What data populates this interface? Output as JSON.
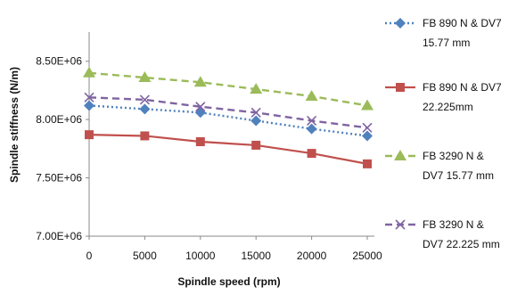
{
  "chart_data": {
    "type": "line",
    "title": "",
    "xlabel": "Spindle speed (rpm)",
    "ylabel": "Spindle stiffness (N/m)",
    "x": [
      0,
      5000,
      10000,
      15000,
      20000,
      25000
    ],
    "x_tick_labels": [
      "0",
      "5000",
      "10000",
      "15000",
      "20000",
      "25000"
    ],
    "y_tick_labels": [
      "7.00E+06",
      "7.50E+06",
      "8.00E+06",
      "8.50E+06"
    ],
    "ylim": [
      7000000,
      8750000
    ],
    "y_ticks": [
      7000000,
      7500000,
      8000000,
      8500000
    ],
    "grid": false,
    "legend_position": "right",
    "series": [
      {
        "name_lines": [
          "FB 890 N & DV7",
          "15.77 mm"
        ],
        "color": "#4f81bd",
        "marker": "diamond",
        "line_style": "dotted",
        "values": [
          8120000,
          8090000,
          8060000,
          7990000,
          7920000,
          7860000
        ]
      },
      {
        "name_lines": [
          "FB 890 N & DV7",
          "22.225mm"
        ],
        "color": "#c0504d",
        "marker": "square",
        "line_style": "solid",
        "values": [
          7870000,
          7860000,
          7810000,
          7780000,
          7710000,
          7620000
        ]
      },
      {
        "name_lines": [
          "FB 3290 N &",
          "DV7 15.77 mm"
        ],
        "color": "#9bbb59",
        "marker": "triangle",
        "line_style": "dashed",
        "values": [
          8400000,
          8360000,
          8320000,
          8260000,
          8200000,
          8120000
        ]
      },
      {
        "name_lines": [
          "FB 3290 N &",
          "DV7 22.225 mm"
        ],
        "color": "#8064a2",
        "marker": "x",
        "line_style": "dashed",
        "values": [
          8190000,
          8170000,
          8110000,
          8060000,
          7990000,
          7930000
        ]
      }
    ]
  }
}
